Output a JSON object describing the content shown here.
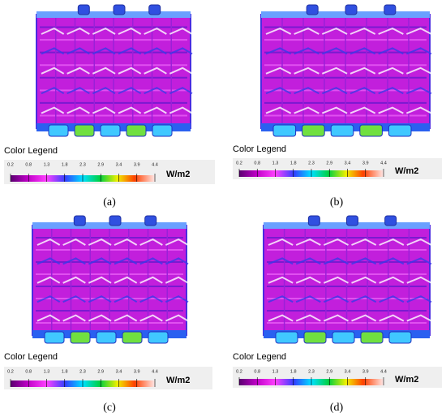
{
  "panels": [
    {
      "caption": "(a)",
      "legend_title": "Color Legend",
      "ticks": [
        "0.2",
        "0.8",
        "1.3",
        "1.8",
        "2.3",
        "2.9",
        "3.4",
        "3.9",
        "4.4"
      ],
      "unit": "W/m2"
    },
    {
      "caption": "(b)",
      "legend_title": "Color Legend",
      "ticks": [
        "0.2",
        "0.8",
        "1.3",
        "1.8",
        "2.3",
        "2.9",
        "3.4",
        "3.9",
        "4.4"
      ],
      "unit": "W/m2"
    },
    {
      "caption": "(c)",
      "legend_title": "Color Legend",
      "ticks": [
        "0.2",
        "0.8",
        "1.3",
        "1.8",
        "2.3",
        "2.9",
        "3.4",
        "3.9",
        "4.4"
      ],
      "unit": "W/m2"
    },
    {
      "caption": "(d)",
      "legend_title": "Color Legend",
      "ticks": [
        "0.2",
        "0.8",
        "1.3",
        "1.8",
        "2.3",
        "2.9",
        "3.4",
        "3.9",
        "4.4"
      ],
      "unit": "W/m2"
    }
  ]
}
